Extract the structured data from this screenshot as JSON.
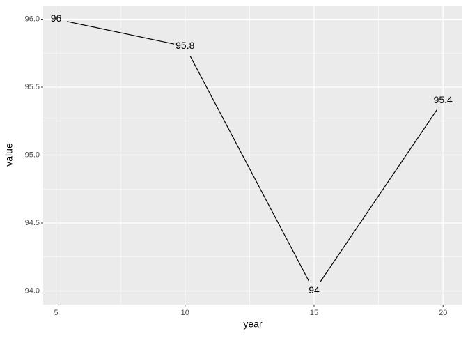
{
  "chart_data": {
    "type": "line",
    "x_label": "year",
    "y_label": "value",
    "x": [
      5,
      10,
      15,
      20
    ],
    "values": [
      96,
      95.8,
      94,
      95.4
    ],
    "color": "#000000",
    "xlim": [
      4.5,
      20.75
    ],
    "xticks": [
      5,
      10,
      15,
      20
    ],
    "ylim": [
      93.9,
      96.1
    ],
    "yticks": [
      94.0,
      94.5,
      95.0,
      95.5,
      96.0
    ],
    "ytick_labels": [
      "94.0",
      "94.5",
      "95.0",
      "95.5",
      "96.0"
    ],
    "grid": true
  }
}
